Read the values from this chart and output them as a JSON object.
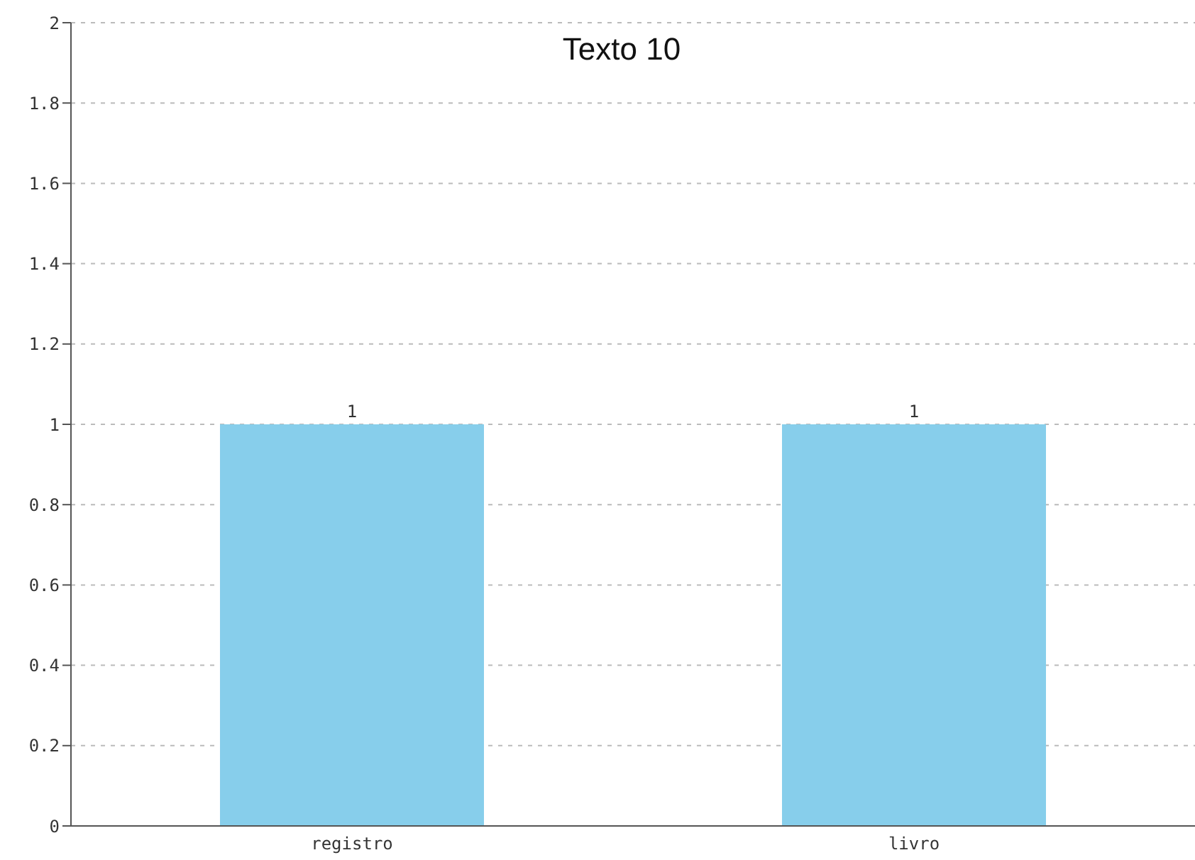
{
  "chart_data": {
    "type": "bar",
    "title": "Texto 10",
    "categories": [
      "registro",
      "livro"
    ],
    "values": [
      1,
      1
    ],
    "color": "#87ceeb",
    "ylim": [
      0,
      2
    ],
    "yticks": [
      0,
      0.2,
      0.4,
      0.6,
      0.8,
      1,
      1.2,
      1.4,
      1.6,
      1.8,
      2
    ],
    "grid": "y",
    "data_labels": true
  }
}
